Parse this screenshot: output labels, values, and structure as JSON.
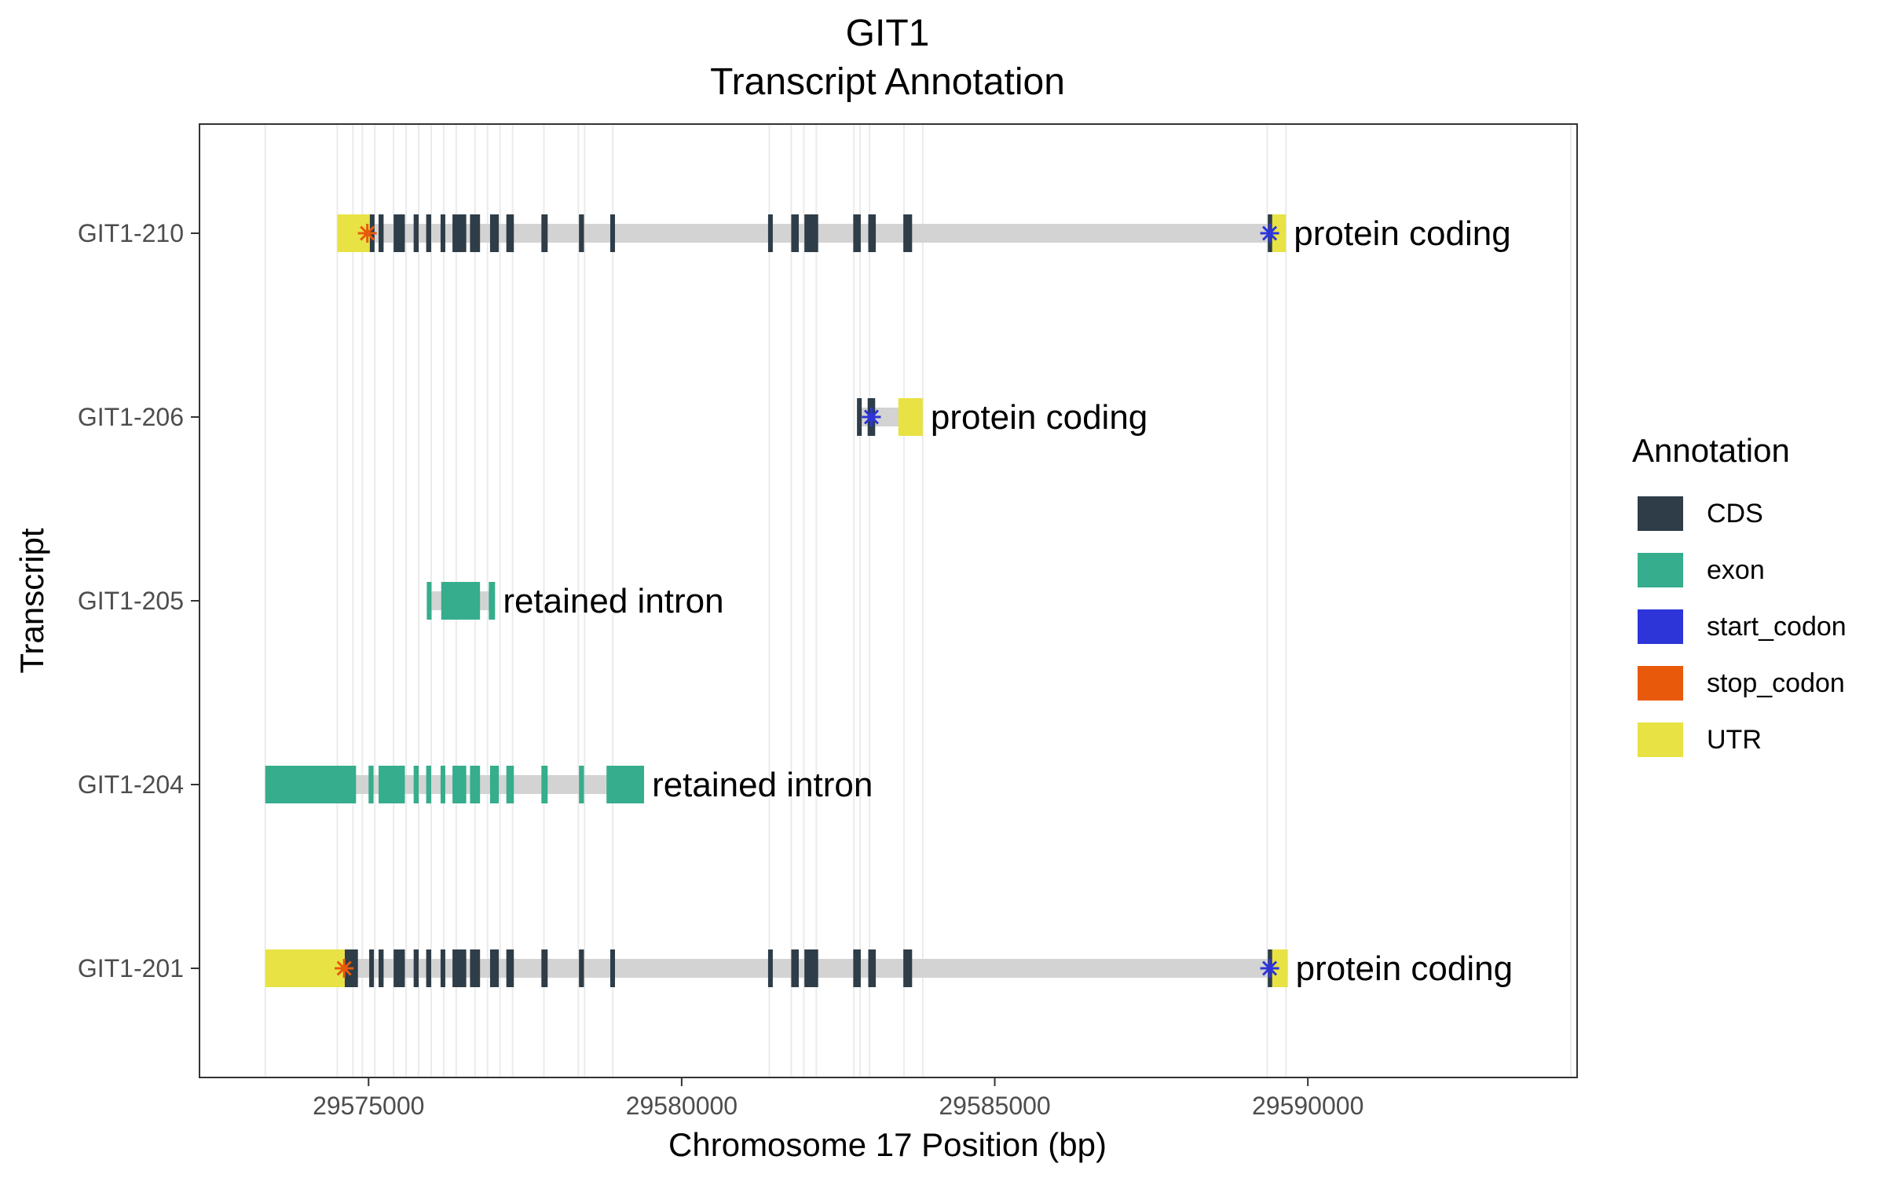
{
  "chart_data": {
    "type": "gene-track",
    "title": "GIT1",
    "subtitle": "Transcript Annotation",
    "xlabel": "Chromosome 17 Position (bp)",
    "ylabel": "Transcript",
    "xlim": [
      29572300,
      29594300
    ],
    "x_ticks": [
      29575000,
      29580000,
      29585000,
      29590000
    ],
    "x_tick_labels": [
      "29575000",
      "29580000",
      "29585000",
      "29590000"
    ],
    "grid_x": [
      29573350,
      29574500,
      29574750,
      29574900,
      29575100,
      29575400,
      29575600,
      29575800,
      29576000,
      29576200,
      29576400,
      29576700,
      29576900,
      29577100,
      29577300,
      29577800,
      29578350,
      29578450,
      29578900,
      29581400,
      29581750,
      29581950,
      29582150,
      29582750,
      29582850,
      29583000,
      29583550,
      29583850,
      29589350,
      29589650,
      29594200
    ],
    "legend": {
      "title": "Annotation",
      "position": "right",
      "items": [
        {
          "label": "CDS",
          "color": "#2e3d48"
        },
        {
          "label": "exon",
          "color": "#36ad8c"
        },
        {
          "label": "start_codon",
          "color": "#2d35d9"
        },
        {
          "label": "stop_codon",
          "color": "#e8590c"
        },
        {
          "label": "UTR",
          "color": "#e8e244"
        }
      ]
    },
    "colors": {
      "CDS": "#2e3d48",
      "exon": "#36ad8c",
      "start_codon": "#2d35d9",
      "stop_codon": "#e8590c",
      "UTR": "#e8e244",
      "intron": "#d3d3d3"
    },
    "transcripts": [
      {
        "name": "GIT1-210",
        "biotype": "protein coding",
        "start": 29574500,
        "end": 29589650,
        "features": [
          {
            "type": "UTR",
            "start": 29574500,
            "end": 29575020
          },
          {
            "type": "CDS",
            "start": 29575020,
            "end": 29575070
          },
          {
            "type": "CDS",
            "start": 29575160,
            "end": 29575240
          },
          {
            "type": "CDS",
            "start": 29575400,
            "end": 29575580
          },
          {
            "type": "CDS",
            "start": 29575720,
            "end": 29575800
          },
          {
            "type": "CDS",
            "start": 29575920,
            "end": 29576000
          },
          {
            "type": "CDS",
            "start": 29576150,
            "end": 29576220
          },
          {
            "type": "CDS",
            "start": 29576340,
            "end": 29576560
          },
          {
            "type": "CDS",
            "start": 29576620,
            "end": 29576780
          },
          {
            "type": "CDS",
            "start": 29576940,
            "end": 29577080
          },
          {
            "type": "CDS",
            "start": 29577200,
            "end": 29577320
          },
          {
            "type": "CDS",
            "start": 29577760,
            "end": 29577860
          },
          {
            "type": "CDS",
            "start": 29578360,
            "end": 29578440
          },
          {
            "type": "CDS",
            "start": 29578860,
            "end": 29578900
          },
          {
            "type": "CDS",
            "start": 29581380,
            "end": 29581440
          },
          {
            "type": "CDS",
            "start": 29581750,
            "end": 29581870
          },
          {
            "type": "CDS",
            "start": 29581960,
            "end": 29582180
          },
          {
            "type": "CDS",
            "start": 29582740,
            "end": 29582860
          },
          {
            "type": "CDS",
            "start": 29582980,
            "end": 29583100
          },
          {
            "type": "CDS",
            "start": 29583540,
            "end": 29583680
          },
          {
            "type": "CDS",
            "start": 29589360,
            "end": 29589430
          },
          {
            "type": "UTR",
            "start": 29589430,
            "end": 29589650
          }
        ],
        "start_codon": 29589390,
        "stop_codon": 29574980
      },
      {
        "name": "GIT1-206",
        "biotype": "protein coding",
        "start": 29582800,
        "end": 29583850,
        "features": [
          {
            "type": "CDS",
            "start": 29582800,
            "end": 29582840
          },
          {
            "type": "CDS",
            "start": 29582970,
            "end": 29583090
          },
          {
            "type": "UTR",
            "start": 29583460,
            "end": 29583850
          }
        ],
        "start_codon": 29583030,
        "stop_codon": null
      },
      {
        "name": "GIT1-205",
        "biotype": "retained intron",
        "start": 29575930,
        "end": 29577020,
        "features": [
          {
            "type": "exon",
            "start": 29575930,
            "end": 29576000
          },
          {
            "type": "exon",
            "start": 29576160,
            "end": 29576780
          },
          {
            "type": "exon",
            "start": 29576920,
            "end": 29577020
          }
        ],
        "start_codon": null,
        "stop_codon": null
      },
      {
        "name": "GIT1-204",
        "biotype": "retained intron",
        "start": 29573350,
        "end": 29579400,
        "features": [
          {
            "type": "exon",
            "start": 29573350,
            "end": 29574800
          },
          {
            "type": "exon",
            "start": 29575000,
            "end": 29575080
          },
          {
            "type": "exon",
            "start": 29575160,
            "end": 29575580
          },
          {
            "type": "exon",
            "start": 29575720,
            "end": 29575800
          },
          {
            "type": "exon",
            "start": 29575920,
            "end": 29576000
          },
          {
            "type": "exon",
            "start": 29576150,
            "end": 29576220
          },
          {
            "type": "exon",
            "start": 29576340,
            "end": 29576560
          },
          {
            "type": "exon",
            "start": 29576620,
            "end": 29576780
          },
          {
            "type": "exon",
            "start": 29576940,
            "end": 29577080
          },
          {
            "type": "exon",
            "start": 29577200,
            "end": 29577320
          },
          {
            "type": "exon",
            "start": 29577760,
            "end": 29577860
          },
          {
            "type": "exon",
            "start": 29578360,
            "end": 29578440
          },
          {
            "type": "exon",
            "start": 29578800,
            "end": 29579400
          }
        ],
        "start_codon": null,
        "stop_codon": null
      },
      {
        "name": "GIT1-201",
        "biotype": "protein coding",
        "start": 29573350,
        "end": 29589680,
        "features": [
          {
            "type": "UTR",
            "start": 29573350,
            "end": 29574620
          },
          {
            "type": "CDS",
            "start": 29574620,
            "end": 29574830
          },
          {
            "type": "CDS",
            "start": 29575010,
            "end": 29575080
          },
          {
            "type": "CDS",
            "start": 29575160,
            "end": 29575240
          },
          {
            "type": "CDS",
            "start": 29575400,
            "end": 29575580
          },
          {
            "type": "CDS",
            "start": 29575720,
            "end": 29575800
          },
          {
            "type": "CDS",
            "start": 29575920,
            "end": 29576000
          },
          {
            "type": "CDS",
            "start": 29576150,
            "end": 29576220
          },
          {
            "type": "CDS",
            "start": 29576340,
            "end": 29576560
          },
          {
            "type": "CDS",
            "start": 29576620,
            "end": 29576780
          },
          {
            "type": "CDS",
            "start": 29576940,
            "end": 29577080
          },
          {
            "type": "CDS",
            "start": 29577200,
            "end": 29577320
          },
          {
            "type": "CDS",
            "start": 29577760,
            "end": 29577860
          },
          {
            "type": "CDS",
            "start": 29578360,
            "end": 29578440
          },
          {
            "type": "CDS",
            "start": 29578860,
            "end": 29578900
          },
          {
            "type": "CDS",
            "start": 29581380,
            "end": 29581440
          },
          {
            "type": "CDS",
            "start": 29581750,
            "end": 29581870
          },
          {
            "type": "CDS",
            "start": 29581960,
            "end": 29582180
          },
          {
            "type": "CDS",
            "start": 29582740,
            "end": 29582860
          },
          {
            "type": "CDS",
            "start": 29582980,
            "end": 29583100
          },
          {
            "type": "CDS",
            "start": 29583540,
            "end": 29583680
          },
          {
            "type": "CDS",
            "start": 29589360,
            "end": 29589430
          },
          {
            "type": "UTR",
            "start": 29589430,
            "end": 29589680
          }
        ],
        "start_codon": 29589390,
        "stop_codon": 29574610
      }
    ]
  }
}
